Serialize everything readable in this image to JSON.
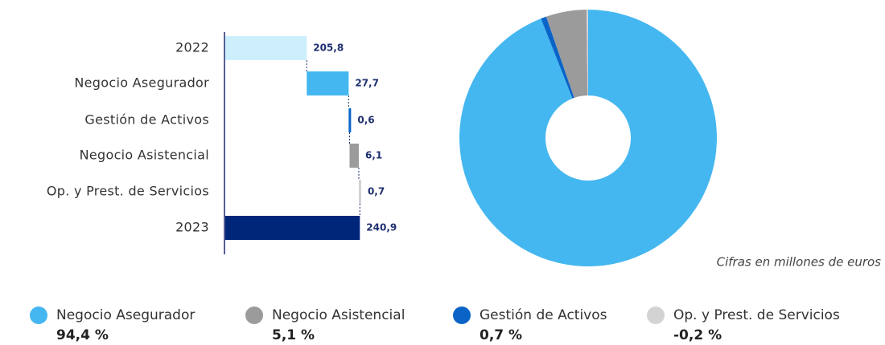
{
  "chart_data": [
    {
      "type": "waterfall",
      "categories": [
        "2022",
        "Negocio Asegurador",
        "Gestión de Activos",
        "Negocio Asistencial",
        "Op. y Prest. de Servicios",
        "2023"
      ],
      "values": [
        205.8,
        27.7,
        0.6,
        6.1,
        0.7,
        240.9
      ],
      "value_labels": [
        "205,8",
        "27,7",
        "0,6",
        "6,1",
        "0,7",
        "240,9"
      ],
      "totals": [
        true,
        false,
        false,
        false,
        false,
        true
      ],
      "colors": [
        "#cdeefb",
        "#45b7f0",
        "#0a64c8",
        "#9b9b9b",
        "#d3d3d3",
        "#00267a"
      ],
      "xlim": [
        152,
        245
      ]
    },
    {
      "type": "donut",
      "categories": [
        "Negocio Asegurador",
        "Negocio Asistencial",
        "Gestión de Activos",
        "Op. y Prest. de Servicios"
      ],
      "values": [
        94.4,
        5.1,
        0.7,
        -0.2
      ],
      "value_labels": [
        "94,4 %",
        "5,1 %",
        "0,7 %",
        "-0,2 %"
      ],
      "colors": [
        "#45b7f0",
        "#9b9b9b",
        "#0a64c8",
        "#d3d3d3"
      ],
      "slice_order": [
        0,
        2,
        1,
        3
      ],
      "note": "Cifras en millones de euros"
    }
  ]
}
